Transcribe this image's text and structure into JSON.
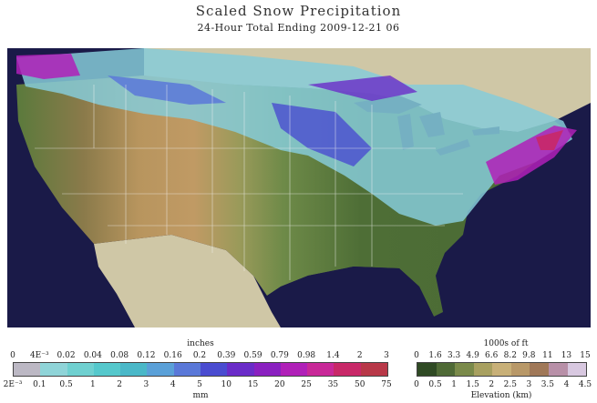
{
  "header": {
    "title": "Scaled Snow Precipitation",
    "subtitle": "24-Hour Total Ending 2009-12-21 06"
  },
  "snow_legend": {
    "top_units": "inches",
    "bottom_units": "mm",
    "top_ticks": [
      "0",
      "4E⁻³",
      "0.02",
      "0.04",
      "0.08",
      "0.12",
      "0.16",
      "0.2",
      "0.39",
      "0.59",
      "0.79",
      "0.98",
      "1.4",
      "2",
      "3"
    ],
    "bottom_ticks": [
      "2E⁻³",
      "0.1",
      "0.5",
      "1",
      "2",
      "3",
      "4",
      "5",
      "10",
      "15",
      "20",
      "25",
      "35",
      "50",
      "75"
    ],
    "colors": [
      "#bcb8c4",
      "#8fd4d8",
      "#6fd0d0",
      "#55c8cc",
      "#4ab8c8",
      "#5aa0d8",
      "#5a78d8",
      "#4a4cd0",
      "#6a2cc8",
      "#8a20c0",
      "#b020b8",
      "#c82898",
      "#c82868",
      "#b83848"
    ]
  },
  "elevation_legend": {
    "top_units": "1000s of ft",
    "bottom_units": "Elevation (km)",
    "top_ticks": [
      "0",
      "1.6",
      "3.3",
      "4.9",
      "6.6",
      "8.2",
      "9.8",
      "11",
      "13",
      "15"
    ],
    "bottom_ticks": [
      "0",
      "0.5",
      "1",
      "1.5",
      "2",
      "2.5",
      "3",
      "3.5",
      "4",
      "4.5"
    ],
    "colors": [
      "#2f4a24",
      "#4f6a36",
      "#7a8a4a",
      "#a8a060",
      "#c8b078",
      "#b89868",
      "#a07858",
      "#b890a8",
      "#d8c8e0"
    ]
  },
  "map": {
    "region": "Conterminous United States",
    "layers": [
      "snow precipitation",
      "terrain elevation",
      "state boundaries"
    ]
  }
}
